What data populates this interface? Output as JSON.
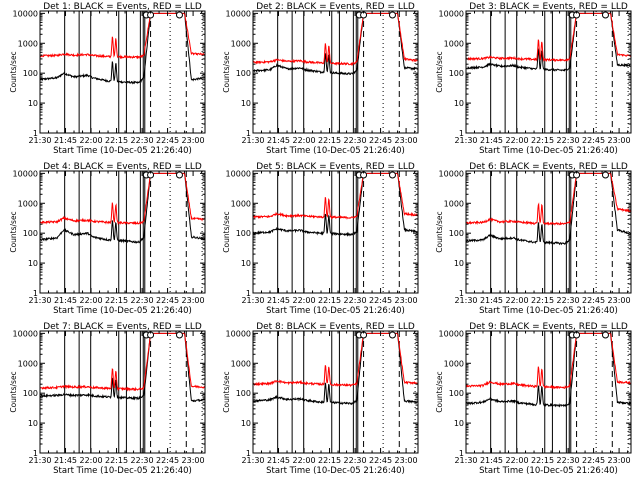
{
  "chart_data": {
    "type": "line",
    "common": {
      "x_tick_labels": [
        "21:30",
        "21:45",
        "22:00",
        "22:15",
        "22:30",
        "22:45",
        "23:00"
      ],
      "x_tick_minutes": [
        1290,
        1305,
        1320,
        1335,
        1350,
        1365,
        1380
      ],
      "xlim_minutes": [
        1290,
        1387
      ],
      "xlabel": "Start Time (10-Dec-05 21:26:40)",
      "ylabel": "Counts/sec",
      "yscale": "log",
      "ylim": [
        1,
        12000
      ],
      "y_tick_labels": [
        "1",
        "10",
        "100",
        "1000",
        "10000"
      ],
      "y_tick_values": [
        1,
        10,
        100,
        1000,
        10000
      ],
      "colors": {
        "events": "#000000",
        "lld": "#ff0000"
      },
      "solid_vlines_minutes": [
        1304.5,
        1313,
        1319.8,
        1336.3,
        1340.8,
        1349,
        1350.7,
        1351.6
      ],
      "dashed_vlines_minutes": [
        1355,
        1376
      ],
      "dotted_vlines_minutes": [
        1366.5,
        1385.3
      ],
      "circle_markers_minutes": [
        1352.5,
        1355,
        1372
      ]
    },
    "panels": [
      {
        "title": "Det 1: BLACK = Events, RED = LLD",
        "series": [
          {
            "name": "BLACK = Events",
            "x": [
              1290,
              1300,
              1304,
              1310,
              1318,
              1321,
              1330,
              1340,
              1348,
              1351,
              1355,
              1375,
              1379,
              1387
            ],
            "y": [
              62,
              70,
              100,
              75,
              85,
              70,
              55,
              50,
              48,
              70,
              9999,
              9999,
              60,
              70
            ]
          },
          {
            "name": "RED = LLD",
            "x": [
              1290,
              1300,
              1304,
              1310,
              1318,
              1321,
              1330,
              1340,
              1348,
              1351,
              1355,
              1375,
              1379,
              1387
            ],
            "y": [
              380,
              390,
              440,
              400,
              420,
              390,
              360,
              350,
              345,
              380,
              9999,
              9999,
              450,
              420
            ]
          }
        ]
      },
      {
        "title": "Det 2: BLACK = Events, RED = LLD",
        "series": [
          {
            "name": "BLACK = Events",
            "x": [
              1290,
              1300,
              1304,
              1310,
              1318,
              1321,
              1330,
              1340,
              1348,
              1351,
              1355,
              1375,
              1379,
              1387
            ],
            "y": [
              120,
              130,
              185,
              140,
              150,
              130,
              110,
              100,
              95,
              120,
              9999,
              9999,
              150,
              140
            ]
          },
          {
            "name": "RED = LLD",
            "x": [
              1290,
              1300,
              1304,
              1310,
              1318,
              1321,
              1330,
              1340,
              1348,
              1351,
              1355,
              1375,
              1379,
              1387
            ],
            "y": [
              230,
              240,
              280,
              250,
              260,
              240,
              220,
              210,
              205,
              230,
              9999,
              9999,
              300,
              260
            ]
          }
        ]
      },
      {
        "title": "Det 3: BLACK = Events, RED = LLD",
        "series": [
          {
            "name": "BLACK = Events",
            "x": [
              1290,
              1300,
              1304,
              1310,
              1318,
              1321,
              1330,
              1340,
              1348,
              1351,
              1355,
              1375,
              1379,
              1387
            ],
            "y": [
              150,
              160,
              200,
              170,
              180,
              160,
              140,
              130,
              125,
              150,
              9999,
              9999,
              190,
              180
            ]
          },
          {
            "name": "RED = LLD",
            "x": [
              1290,
              1300,
              1304,
              1310,
              1318,
              1321,
              1330,
              1340,
              1348,
              1351,
              1355,
              1375,
              1379,
              1387
            ],
            "y": [
              300,
              310,
              340,
              315,
              320,
              305,
              290,
              280,
              275,
              300,
              9999,
              9999,
              420,
              380
            ]
          }
        ]
      },
      {
        "title": "Det 4: BLACK = Events, RED = LLD",
        "series": [
          {
            "name": "BLACK = Events",
            "x": [
              1290,
              1300,
              1304,
              1310,
              1318,
              1321,
              1330,
              1340,
              1348,
              1351,
              1355,
              1375,
              1379,
              1387
            ],
            "y": [
              60,
              70,
              130,
              90,
              100,
              75,
              60,
              55,
              50,
              70,
              9999,
              9999,
              75,
              65
            ]
          },
          {
            "name": "RED = LLD",
            "x": [
              1290,
              1300,
              1304,
              1310,
              1318,
              1321,
              1330,
              1340,
              1348,
              1351,
              1355,
              1375,
              1379,
              1387
            ],
            "y": [
              230,
              240,
              320,
              260,
              270,
              250,
              230,
              220,
              215,
              240,
              9999,
              9999,
              310,
              290
            ]
          }
        ]
      },
      {
        "title": "Det 5: BLACK = Events, RED = LLD",
        "series": [
          {
            "name": "BLACK = Events",
            "x": [
              1290,
              1300,
              1304,
              1310,
              1318,
              1321,
              1330,
              1340,
              1348,
              1351,
              1355,
              1375,
              1379,
              1387
            ],
            "y": [
              100,
              110,
              140,
              120,
              125,
              110,
              100,
              95,
              90,
              110,
              9999,
              9999,
              130,
              110
            ]
          },
          {
            "name": "RED = LLD",
            "x": [
              1290,
              1300,
              1304,
              1310,
              1318,
              1321,
              1330,
              1340,
              1348,
              1351,
              1355,
              1375,
              1379,
              1387
            ],
            "y": [
              350,
              360,
              450,
              380,
              390,
              370,
              350,
              340,
              330,
              360,
              9999,
              9999,
              450,
              400
            ]
          }
        ]
      },
      {
        "title": "Det 6: BLACK = Events, RED = LLD",
        "series": [
          {
            "name": "BLACK = Events",
            "x": [
              1290,
              1300,
              1304,
              1310,
              1318,
              1321,
              1330,
              1340,
              1348,
              1351,
              1355,
              1375,
              1379,
              1387
            ],
            "y": [
              55,
              60,
              85,
              65,
              70,
              60,
              50,
              48,
              45,
              60,
              9999,
              9999,
              130,
              95
            ]
          },
          {
            "name": "RED = LLD",
            "x": [
              1290,
              1300,
              1304,
              1310,
              1318,
              1321,
              1330,
              1340,
              1348,
              1351,
              1355,
              1375,
              1379,
              1387
            ],
            "y": [
              220,
              230,
              290,
              240,
              250,
              235,
              215,
              210,
              205,
              230,
              9999,
              9999,
              650,
              550
            ]
          }
        ]
      },
      {
        "title": "Det 7: BLACK = Events, RED = LLD",
        "series": [
          {
            "name": "BLACK = Events",
            "x": [
              1290,
              1300,
              1304,
              1310,
              1318,
              1321,
              1330,
              1340,
              1348,
              1351,
              1355,
              1375,
              1379,
              1387
            ],
            "y": [
              80,
              85,
              90,
              85,
              88,
              82,
              75,
              70,
              68,
              80,
              9999,
              9999,
              55,
              60
            ]
          },
          {
            "name": "RED = LLD",
            "x": [
              1290,
              1300,
              1304,
              1310,
              1318,
              1321,
              1330,
              1340,
              1348,
              1351,
              1355,
              1375,
              1379,
              1387
            ],
            "y": [
              150,
              155,
              170,
              160,
              165,
              155,
              145,
              140,
              135,
              150,
              9999,
              9999,
              170,
              160
            ]
          }
        ]
      },
      {
        "title": "Det 8: BLACK = Events, RED = LLD",
        "series": [
          {
            "name": "BLACK = Events",
            "x": [
              1290,
              1300,
              1304,
              1310,
              1318,
              1321,
              1330,
              1340,
              1348,
              1351,
              1355,
              1375,
              1379,
              1387
            ],
            "y": [
              55,
              60,
              75,
              62,
              65,
              58,
              50,
              48,
              45,
              55,
              9999,
              9999,
              55,
              50
            ]
          },
          {
            "name": "RED = LLD",
            "x": [
              1290,
              1300,
              1304,
              1310,
              1318,
              1321,
              1330,
              1340,
              1348,
              1351,
              1355,
              1375,
              1379,
              1387
            ],
            "y": [
              200,
              210,
              260,
              220,
              230,
              215,
              200,
              190,
              185,
              205,
              9999,
              9999,
              230,
              220
            ]
          }
        ]
      },
      {
        "title": "Det 9: BLACK = Events, RED = LLD",
        "series": [
          {
            "name": "BLACK = Events",
            "x": [
              1290,
              1300,
              1304,
              1310,
              1318,
              1321,
              1330,
              1340,
              1348,
              1351,
              1355,
              1375,
              1379,
              1387
            ],
            "y": [
              45,
              50,
              65,
              52,
              55,
              48,
              42,
              40,
              38,
              45,
              9999,
              9999,
              50,
              45
            ]
          },
          {
            "name": "RED = LLD",
            "x": [
              1290,
              1300,
              1304,
              1310,
              1318,
              1321,
              1330,
              1340,
              1348,
              1351,
              1355,
              1375,
              1379,
              1387
            ],
            "y": [
              170,
              180,
              240,
              200,
              210,
              190,
              170,
              160,
              155,
              175,
              9999,
              9999,
              240,
              220
            ]
          }
        ]
      }
    ]
  }
}
